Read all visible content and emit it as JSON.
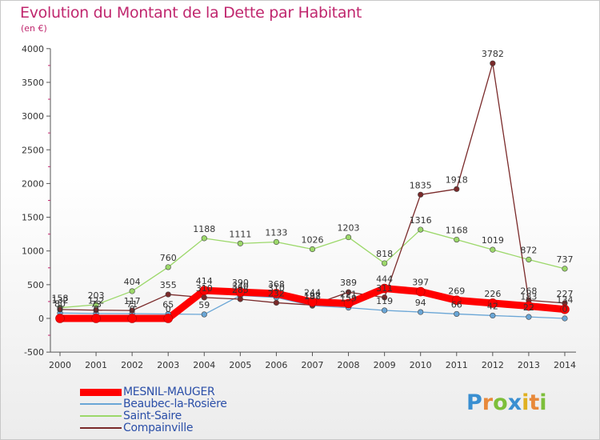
{
  "title": "Evolution du Montant de la Dette par Habitant",
  "subtitle": "(en €)",
  "logo_text": "Proxiti",
  "colors": {
    "title": "#c0276e",
    "legend_text": "#2b4fa8",
    "MESNIL-MAUGER": "#ff0000",
    "Beaubec-la-Rosière": "#6aa6d6",
    "Saint-Saire": "#9cd86a",
    "Compainville": "#7a2a2a"
  },
  "chart_data": {
    "type": "line",
    "title": "Evolution du Montant de la Dette par Habitant",
    "subtitle": "(en €)",
    "xlabel": "",
    "ylabel": "",
    "categories": [
      "2000",
      "2001",
      "2002",
      "2003",
      "2004",
      "2005",
      "2006",
      "2007",
      "2008",
      "2009",
      "2010",
      "2011",
      "2012",
      "2013",
      "2014"
    ],
    "ylim": [
      -500,
      4000
    ],
    "yticks": [
      -500,
      0,
      500,
      1000,
      1500,
      2000,
      2500,
      3000,
      3500,
      4000
    ],
    "grid": false,
    "legend_position": "bottom-left",
    "series": [
      {
        "name": "MESNIL-MAUGER",
        "values": [
          0,
          0,
          0,
          0,
          414,
          390,
          368,
          244,
          221,
          444,
          397,
          269,
          226,
          183,
          134
        ]
      },
      {
        "name": "Beaubec-la-Rosière",
        "values": [
          80,
          73,
          71,
          65,
          59,
          340,
          310,
          188,
          159,
          119,
          94,
          66,
          42,
          22,
          0
        ]
      },
      {
        "name": "Saint-Saire",
        "values": [
          158,
          203,
          404,
          760,
          1188,
          1111,
          1133,
          1026,
          1203,
          818,
          1316,
          1168,
          1019,
          872,
          737
        ]
      },
      {
        "name": "Compainville",
        "values": [
          132,
          122,
          117,
          355,
          310,
          285,
          232,
          197,
          389,
          311,
          1835,
          1918,
          3782,
          268,
          227
        ]
      }
    ]
  }
}
